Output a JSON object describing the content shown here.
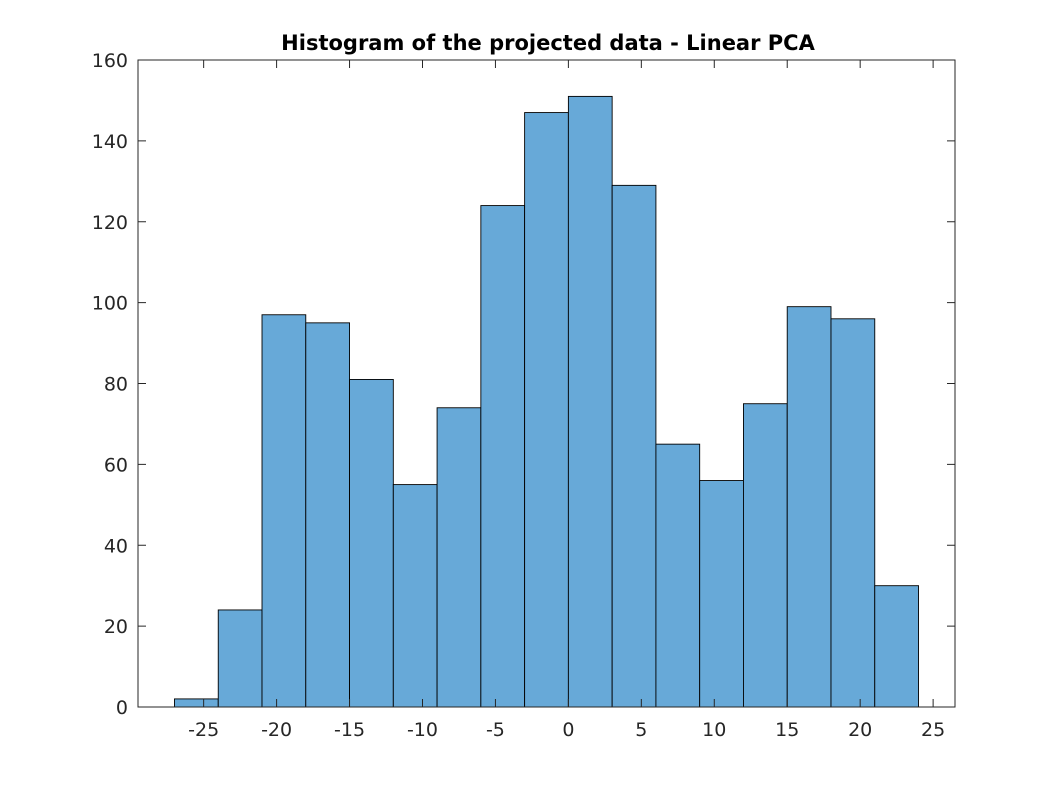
{
  "chart_data": {
    "type": "bar",
    "title": "Histogram of the projected data - Linear PCA",
    "xlabel": "",
    "ylabel": "",
    "xlim": [
      -29.5,
      26.5
    ],
    "ylim": [
      0,
      160
    ],
    "xticks": [
      -25,
      -20,
      -15,
      -10,
      -5,
      0,
      5,
      10,
      15,
      20,
      25
    ],
    "yticks": [
      0,
      20,
      40,
      60,
      80,
      100,
      120,
      140,
      160
    ],
    "bin_edges": [
      -27,
      -24,
      -21,
      -18,
      -15,
      -12,
      -9,
      -6,
      -3,
      0,
      3,
      6,
      9,
      12,
      15,
      18,
      21,
      24
    ],
    "values": [
      2,
      24,
      97,
      95,
      81,
      55,
      74,
      124,
      147,
      151,
      129,
      65,
      56,
      75,
      99,
      96,
      30
    ],
    "grid": false,
    "bar_color": "#67a9d8",
    "edge_color": "#000000",
    "axis_color": "#262626"
  }
}
